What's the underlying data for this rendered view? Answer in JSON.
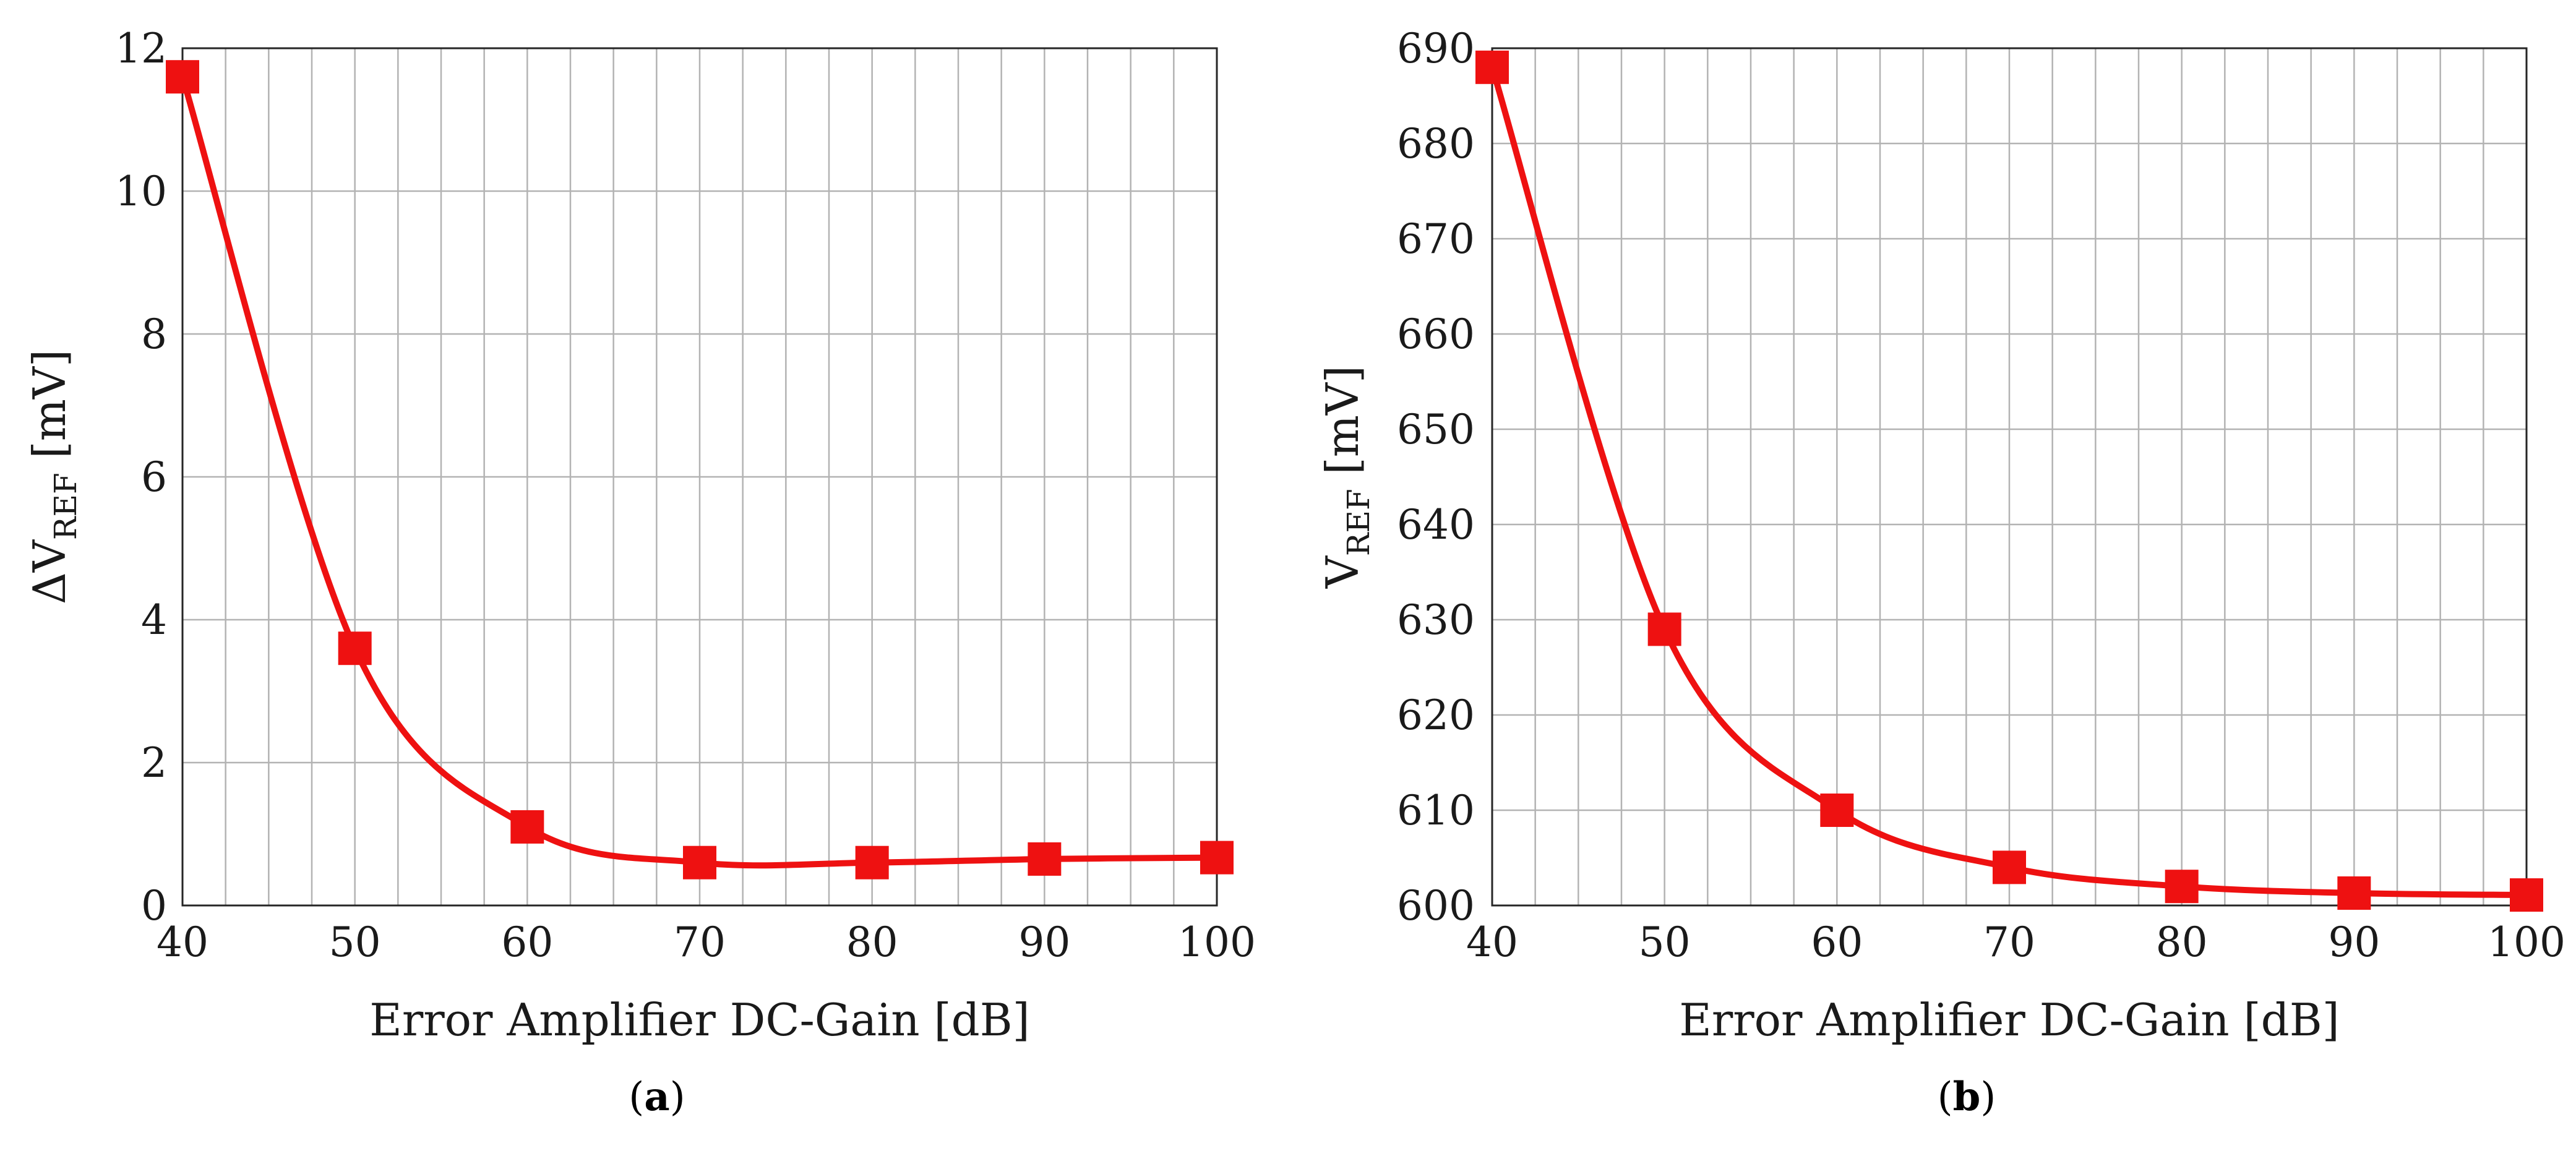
{
  "colors": {
    "series": "#ee1111",
    "grid": "#b3b3b3",
    "frame": "#262626"
  },
  "chart_data": [
    {
      "id": "a",
      "type": "line",
      "panel_label": {
        "open": "(",
        "letter": "a",
        "close": ")"
      },
      "xlabel": "Error Amplifier DC-Gain [dB]",
      "ylabel": {
        "prefix": "ΔV",
        "subscript": "REF",
        "unit": " [mV]"
      },
      "xlim": [
        40,
        100
      ],
      "ylim": [
        0,
        12
      ],
      "xticks": [
        40,
        50,
        60,
        70,
        80,
        90,
        100
      ],
      "yticks": [
        0,
        2,
        4,
        6,
        8,
        10,
        12
      ],
      "xminor": [
        42.5,
        45,
        47.5,
        52.5,
        55,
        57.5,
        62.5,
        65,
        67.5,
        72.5,
        75,
        77.5,
        82.5,
        85,
        87.5,
        92.5,
        95,
        97.5
      ],
      "grid": true,
      "marker": "square",
      "smooth": true,
      "x": [
        40,
        50,
        60,
        70,
        80,
        90,
        100
      ],
      "y": [
        11.6,
        3.6,
        1.1,
        0.6,
        0.6,
        0.65,
        0.67
      ]
    },
    {
      "id": "b",
      "type": "line",
      "panel_label": {
        "open": "(",
        "letter": "b",
        "close": ")"
      },
      "xlabel": "Error Amplifier DC-Gain [dB]",
      "ylabel": {
        "prefix": "V",
        "subscript": "REF",
        "unit": " [mV]"
      },
      "xlim": [
        40,
        100
      ],
      "ylim": [
        600,
        690
      ],
      "xticks": [
        40,
        50,
        60,
        70,
        80,
        90,
        100
      ],
      "yticks": [
        600,
        610,
        620,
        630,
        640,
        650,
        660,
        670,
        680,
        690
      ],
      "xminor": [
        42.5,
        45,
        47.5,
        52.5,
        55,
        57.5,
        62.5,
        65,
        67.5,
        72.5,
        75,
        77.5,
        82.5,
        85,
        87.5,
        92.5,
        95,
        97.5
      ],
      "grid": true,
      "marker": "square",
      "smooth": true,
      "x": [
        40,
        50,
        60,
        70,
        80,
        90,
        100
      ],
      "y": [
        688,
        629,
        610,
        604,
        602,
        601.3,
        601.1
      ]
    }
  ]
}
